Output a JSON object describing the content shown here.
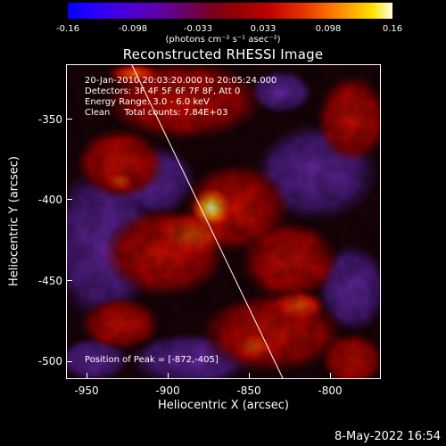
{
  "colorbar": {
    "ticks": [
      "-0.16",
      "-0.098",
      "-0.033",
      "0.033",
      "0.098",
      "0.16"
    ],
    "units": "(photons cm⁻² s⁻¹ asec⁻²)"
  },
  "title": "Reconstructed RHESSI Image",
  "info": {
    "time_range": "20-Jan-2010 20:03:20.000 to 20:05:24.000",
    "detectors": "Detectors: 3F 4F 5F 6F 7F 8F, Att 0",
    "energy": "Energy Range: 3.0 - 6.0 keV",
    "clean": "Clean     Total counts: 7.84E+03",
    "peak": "Position of Peak = [-872,-405]"
  },
  "axes": {
    "xlabel": "Heliocentric X (arcsec)",
    "ylabel": "Heliocentric Y (arcsec)",
    "xticks": [
      "-950",
      "-900",
      "-850",
      "-800"
    ],
    "yticks": [
      "-350",
      "-400",
      "-450",
      "-500"
    ]
  },
  "footer": {
    "date": "8-May-2022 16:54"
  }
}
